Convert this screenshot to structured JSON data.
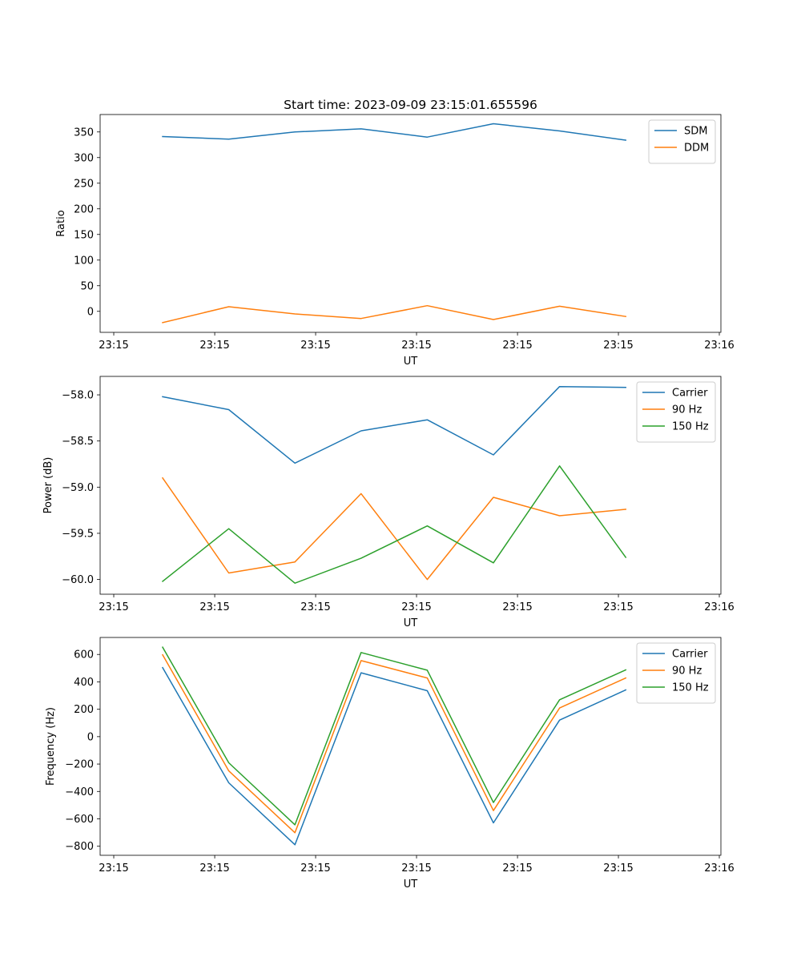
{
  "figure_title": "Start time: 2023-09-09 23:15:01.655596",
  "colors": {
    "blue": "#1f77b4",
    "orange": "#ff7f0e",
    "green": "#2ca02c"
  },
  "chart_data": [
    {
      "type": "line",
      "title": "Start time: 2023-09-09 23:15:01.655596",
      "xlabel": "UT",
      "ylabel": "Ratio",
      "x": [
        0,
        1,
        2,
        3,
        4,
        5,
        6,
        7
      ],
      "xticks": [
        -0.738,
        0.788,
        2.313,
        3.838,
        5.364,
        6.889,
        8.414
      ],
      "xtick_labels": [
        "23:15",
        "23:15",
        "23:15",
        "23:15",
        "23:15",
        "23:15",
        "23:16"
      ],
      "xlim": [
        -0.944,
        8.438
      ],
      "ylim": [
        -41,
        384
      ],
      "yticks": [
        0,
        50,
        100,
        150,
        200,
        250,
        300,
        350
      ],
      "ytick_labels": [
        "0",
        "50",
        "100",
        "150",
        "200",
        "250",
        "300",
        "350"
      ],
      "grid": false,
      "legend": "top-right",
      "series": [
        {
          "name": "SDM",
          "color": "#1f77b4",
          "values": [
            341,
            336,
            350,
            356,
            340,
            366,
            352,
            334
          ]
        },
        {
          "name": "DDM",
          "color": "#ff7f0e",
          "values": [
            -22,
            9,
            -5,
            -14,
            11,
            -16,
            10,
            -10
          ]
        }
      ]
    },
    {
      "type": "line",
      "title": "",
      "xlabel": "UT",
      "ylabel": "Power (dB)",
      "x": [
        0,
        1,
        2,
        3,
        4,
        5,
        6,
        7
      ],
      "xticks": [
        -0.738,
        0.788,
        2.313,
        3.838,
        5.364,
        6.889,
        8.414
      ],
      "xtick_labels": [
        "23:15",
        "23:15",
        "23:15",
        "23:15",
        "23:15",
        "23:15",
        "23:16"
      ],
      "xlim": [
        -0.944,
        8.438
      ],
      "ylim": [
        -60.16,
        -57.8
      ],
      "yticks": [
        -60.0,
        -59.5,
        -59.0,
        -58.5,
        -58.0
      ],
      "ytick_labels": [
        "−60.0",
        "−59.5",
        "−59.0",
        "−58.5",
        "−58.0"
      ],
      "grid": false,
      "legend": "top-right",
      "series": [
        {
          "name": "Carrier",
          "color": "#1f77b4",
          "values": [
            -58.02,
            -58.16,
            -58.74,
            -58.39,
            -58.27,
            -58.65,
            -57.91,
            -57.92
          ]
        },
        {
          "name": "90 Hz",
          "color": "#ff7f0e",
          "values": [
            -58.9,
            -59.93,
            -59.81,
            -59.07,
            -60.0,
            -59.11,
            -59.31,
            -59.24
          ]
        },
        {
          "name": "150 Hz",
          "color": "#2ca02c",
          "values": [
            -60.02,
            -59.45,
            -60.04,
            -59.77,
            -59.42,
            -59.82,
            -58.77,
            -59.76
          ]
        }
      ]
    },
    {
      "type": "line",
      "title": "",
      "xlabel": "UT",
      "ylabel": "Frequency (Hz)",
      "x": [
        0,
        1,
        2,
        3,
        4,
        5,
        6,
        7
      ],
      "xticks": [
        -0.738,
        0.788,
        2.313,
        3.838,
        5.364,
        6.889,
        8.414
      ],
      "xtick_labels": [
        "23:15",
        "23:15",
        "23:15",
        "23:15",
        "23:15",
        "23:15",
        "23:16"
      ],
      "xlim": [
        -0.944,
        8.438
      ],
      "ylim": [
        -866,
        724
      ],
      "yticks": [
        -800,
        -600,
        -400,
        -200,
        0,
        200,
        400,
        600
      ],
      "ytick_labels": [
        "−800",
        "−600",
        "−400",
        "−200",
        "0",
        "200",
        "400",
        "600"
      ],
      "grid": false,
      "legend": "top-right",
      "series": [
        {
          "name": "Carrier",
          "color": "#1f77b4",
          "values": [
            504,
            -337,
            -789,
            466,
            335,
            -629,
            121,
            341
          ]
        },
        {
          "name": "90 Hz",
          "color": "#ff7f0e",
          "values": [
            598,
            -250,
            -701,
            555,
            428,
            -540,
            209,
            428
          ]
        },
        {
          "name": "150 Hz",
          "color": "#2ca02c",
          "values": [
            653,
            -191,
            -643,
            614,
            485,
            -481,
            269,
            487
          ]
        }
      ]
    }
  ]
}
